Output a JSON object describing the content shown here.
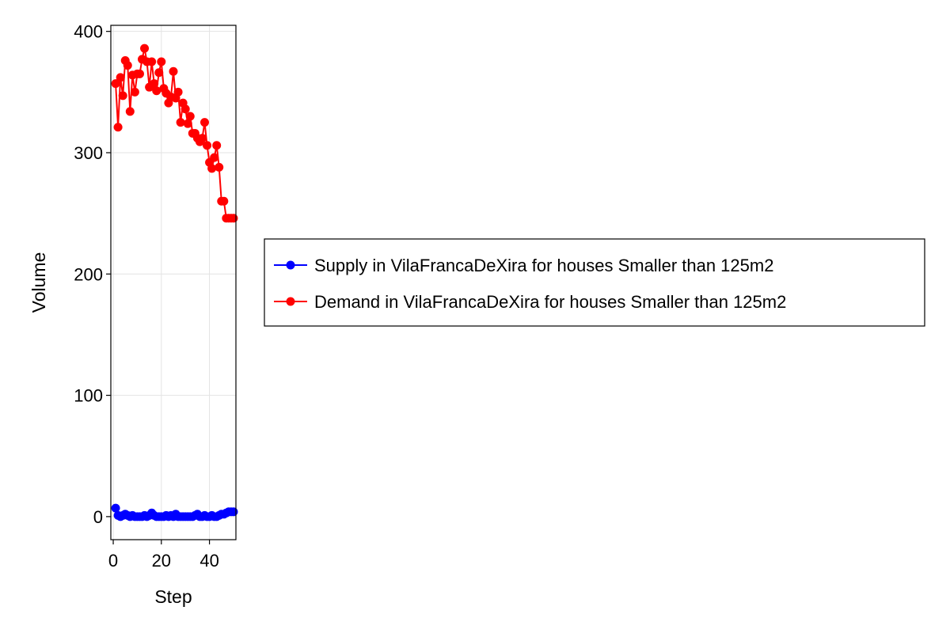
{
  "chart_data": {
    "type": "line",
    "title": "",
    "xlabel": "Step",
    "ylabel": "Volume",
    "xlim": [
      -1,
      51
    ],
    "ylim": [
      -19,
      405
    ],
    "xticks": [
      0,
      20,
      40
    ],
    "yticks": [
      0,
      100,
      200,
      300,
      400
    ],
    "xtick_labels": [
      "0",
      "20",
      "40"
    ],
    "ytick_labels": [
      "0",
      "100",
      "200",
      "300",
      "400"
    ],
    "grid": true,
    "legend_position": "right",
    "x": [
      1,
      2,
      3,
      4,
      5,
      6,
      7,
      8,
      9,
      10,
      11,
      12,
      13,
      14,
      15,
      16,
      17,
      18,
      19,
      20,
      21,
      22,
      23,
      24,
      25,
      26,
      27,
      28,
      29,
      30,
      31,
      32,
      33,
      34,
      35,
      36,
      37,
      38,
      39,
      40,
      41,
      42,
      43,
      44,
      45,
      46,
      47,
      48,
      49,
      50
    ],
    "series": [
      {
        "name": "Supply in VilaFrancaDeXira for houses Smaller than 125m2",
        "color": "#0000ff",
        "values": [
          7,
          1,
          0,
          1,
          2,
          1,
          0,
          1,
          0,
          0,
          0,
          0,
          1,
          0,
          1,
          3,
          1,
          0,
          0,
          0,
          0,
          1,
          0,
          1,
          0,
          2,
          0,
          0,
          0,
          0,
          0,
          0,
          0,
          1,
          2,
          0,
          0,
          1,
          0,
          0,
          1,
          0,
          0,
          1,
          2,
          2,
          3,
          4,
          4,
          4
        ]
      },
      {
        "name": "Demand in VilaFrancaDeXira for houses Smaller than 125m2",
        "color": "#ff0000",
        "values": [
          357,
          321,
          362,
          347,
          376,
          372,
          334,
          364,
          350,
          365,
          365,
          377,
          386,
          375,
          354,
          375,
          357,
          351,
          366,
          375,
          353,
          349,
          341,
          346,
          367,
          345,
          350,
          325,
          341,
          336,
          324,
          330,
          316,
          316,
          312,
          309,
          312,
          325,
          306,
          292,
          287,
          296,
          306,
          288,
          260,
          260,
          246,
          246,
          246,
          246
        ]
      }
    ]
  }
}
